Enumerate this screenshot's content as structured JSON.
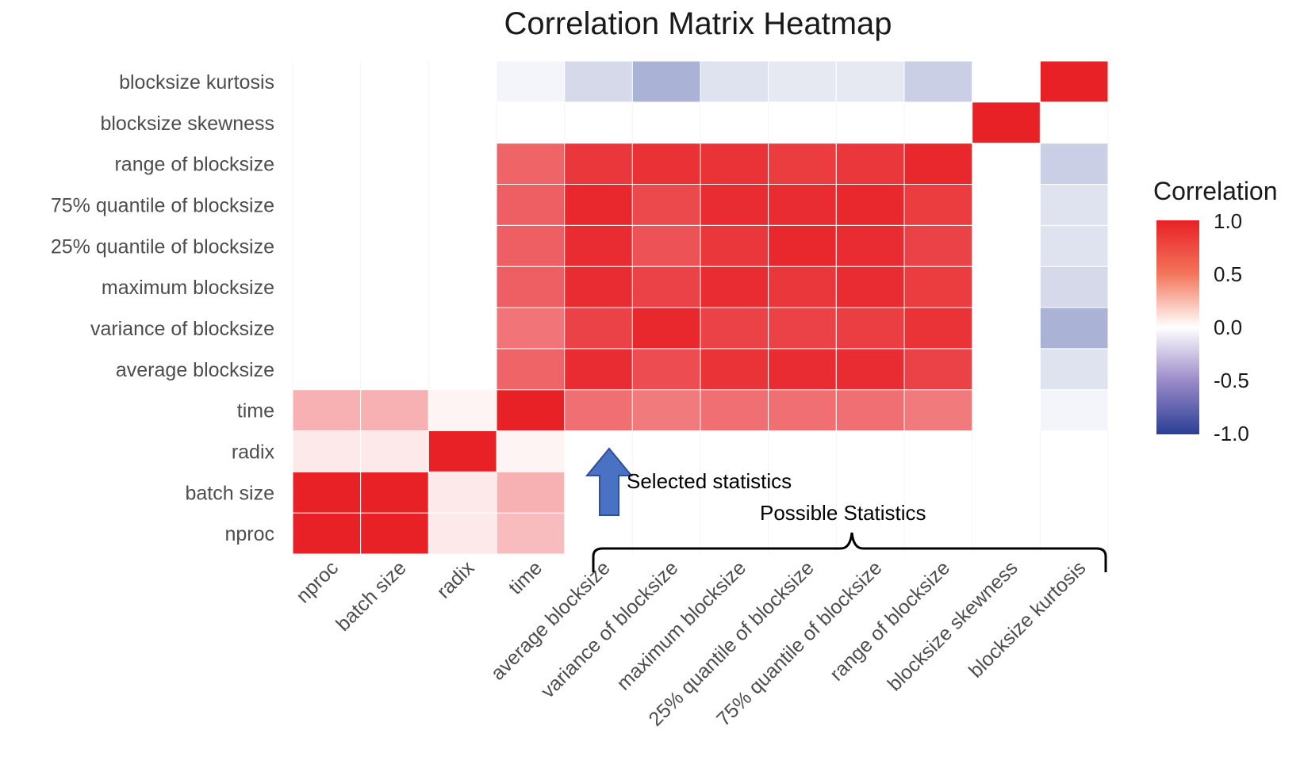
{
  "chart_data": {
    "type": "heatmap",
    "title": "Correlation Matrix Heatmap",
    "x_categories": [
      "nproc",
      "batch size",
      "radix",
      "time",
      "average blocksize",
      "variance of blocksize",
      "maximum blocksize",
      "25% quantile of blocksize",
      "75% quantile of blocksize",
      "range of blocksize",
      "blocksize skewness",
      "blocksize kurtosis"
    ],
    "y_categories": [
      "nproc",
      "batch size",
      "radix",
      "time",
      "average blocksize",
      "variance of blocksize",
      "maximum blocksize",
      "25% quantile of blocksize",
      "75% quantile of blocksize",
      "range of blocksize",
      "blocksize skewness",
      "blocksize kurtosis"
    ],
    "values": [
      [
        1.0,
        1.0,
        0.1,
        0.3,
        null,
        null,
        null,
        null,
        null,
        null,
        null,
        null
      ],
      [
        1.0,
        1.0,
        0.1,
        0.35,
        null,
        null,
        null,
        null,
        null,
        null,
        null,
        null
      ],
      [
        0.1,
        0.1,
        1.0,
        0.05,
        null,
        null,
        null,
        null,
        null,
        null,
        null,
        null
      ],
      [
        0.35,
        0.35,
        0.05,
        1.0,
        0.65,
        0.6,
        0.65,
        0.65,
        0.65,
        0.6,
        null,
        -0.05
      ],
      [
        null,
        null,
        null,
        0.7,
        0.95,
        0.8,
        0.92,
        0.95,
        0.95,
        0.85,
        null,
        -0.15
      ],
      [
        null,
        null,
        null,
        0.62,
        0.85,
        0.97,
        0.85,
        0.85,
        0.87,
        0.92,
        null,
        -0.4
      ],
      [
        null,
        null,
        null,
        0.72,
        0.95,
        0.85,
        0.95,
        0.9,
        0.95,
        0.88,
        null,
        -0.2
      ],
      [
        null,
        null,
        null,
        0.72,
        0.95,
        0.78,
        0.9,
        0.97,
        0.95,
        0.85,
        null,
        -0.15
      ],
      [
        null,
        null,
        null,
        0.72,
        0.97,
        0.82,
        0.95,
        0.95,
        0.97,
        0.88,
        null,
        -0.15
      ],
      [
        null,
        null,
        null,
        0.7,
        0.9,
        0.93,
        0.92,
        0.88,
        0.9,
        0.97,
        null,
        -0.25
      ],
      [
        null,
        null,
        null,
        null,
        null,
        null,
        null,
        null,
        null,
        null,
        1.0,
        null
      ],
      [
        null,
        null,
        null,
        -0.05,
        -0.2,
        -0.4,
        -0.15,
        -0.12,
        -0.12,
        -0.25,
        null,
        1.0
      ]
    ],
    "color_scale": {
      "low": "#2b3f95",
      "mid": "#ffffff",
      "high": "#e82126",
      "limits": [
        -1.0,
        1.0
      ]
    },
    "legend": {
      "title": "Correlation",
      "ticks": [
        "1.0",
        "0.5",
        "0.0",
        "-0.5",
        "-1.0"
      ],
      "position": "right"
    },
    "annotations": [
      {
        "text": "Selected statistics"
      },
      {
        "text": "Possible Statistics"
      }
    ]
  }
}
